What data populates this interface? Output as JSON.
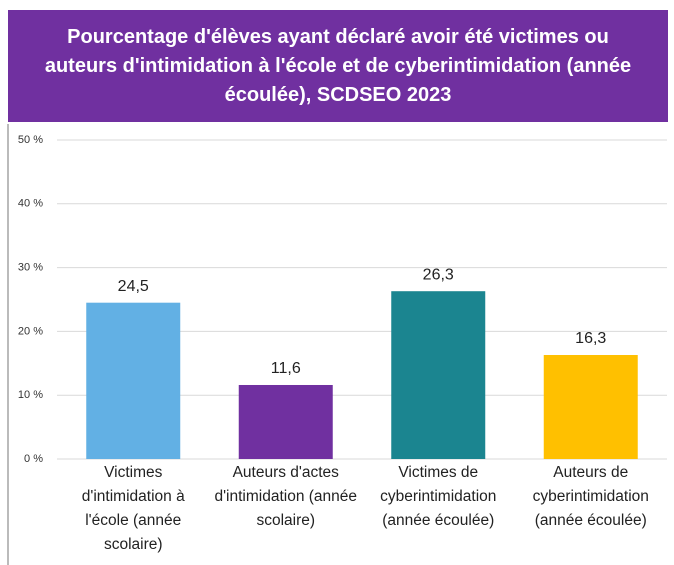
{
  "chart_data": {
    "type": "bar",
    "title": "Pourcentage d'élèves ayant déclaré avoir été victimes ou auteurs d'intimidation à l'école et de cyberintimidation (année écoulée), SCDSEO 2023",
    "categories": [
      "Victimes d'intimidation à l'école (année scolaire)",
      "Auteurs d'actes d'intimidation (année scolaire)",
      "Victimes de cyberintimidation (année écoulée)",
      "Auteurs de cyberintimidation (année écoulée)"
    ],
    "values": [
      24.5,
      11.6,
      26.3,
      16.3
    ],
    "value_labels": [
      "24,5",
      "11,6",
      "26,3",
      "16,3"
    ],
    "colors": [
      "#62b0e4",
      "#7030a0",
      "#1b8590",
      "#ffc000"
    ],
    "ylim": [
      0,
      50
    ],
    "yticks": [
      {
        "value": 0,
        "label": "0 %"
      },
      {
        "value": 10,
        "label": "10 %"
      },
      {
        "value": 20,
        "label": "20 %"
      },
      {
        "value": 30,
        "label": "30 %"
      },
      {
        "value": 40,
        "label": "40 %"
      },
      {
        "value": 50,
        "label": "50 %"
      }
    ],
    "grid": true
  }
}
